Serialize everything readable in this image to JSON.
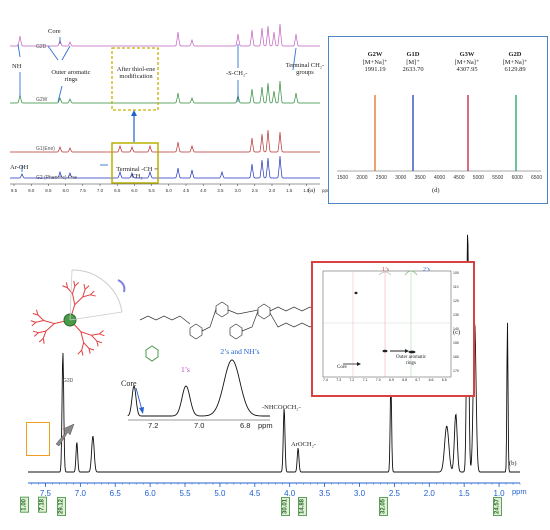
{
  "panel_a": {
    "label": "(a)",
    "annotations": {
      "core": "Core",
      "nh": "NH",
      "outer_aromatic": "Outer aromatic rings",
      "after_thiol": "After thiol-ene modification",
      "s_ch2": "-S-CH₂-",
      "terminal_groups": "Terminal CH₂-groups",
      "ar_oh": "Ar-OH",
      "terminal_ch": "Terminal -CH = CH₂"
    },
    "trace_labels": [
      "G2D",
      "G2W",
      "G1(Ene)",
      "G2 (Phenolic) Ene"
    ],
    "x_ticks": [
      "9.5",
      "9.0",
      "8.5",
      "8.0",
      "7.5",
      "7.0",
      "6.5",
      "6.0",
      "5.5",
      "5.0",
      "4.5",
      "4.0",
      "3.5",
      "3.0",
      "2.5",
      "2.0",
      "1.5",
      "1.0"
    ],
    "x_unit": "ppm",
    "colors": [
      "#c060c0",
      "#2e8b3a",
      "#b83030",
      "#2030c0"
    ]
  },
  "panel_d": {
    "label": "(d)",
    "species": [
      {
        "name": "G2W",
        "ion": "[M+Na]⁺",
        "mass": "1991.19",
        "color": "#e07020"
      },
      {
        "name": "G1D",
        "ion": "[M]⁺",
        "mass": "2633.70",
        "color": "#2040c0"
      },
      {
        "name": "G3W",
        "ion": "[M+Na]⁺",
        "mass": "4307.95",
        "color": "#c02040"
      },
      {
        "name": "G2D",
        "ion": "[M+Na]⁺",
        "mass": "6129.89",
        "color": "#20a060"
      }
    ],
    "x_ticks": [
      "1500",
      "2000",
      "2500",
      "3000",
      "3500",
      "4000",
      "4500",
      "5000",
      "5500",
      "6000",
      "6500"
    ]
  },
  "panel_b": {
    "label": "(b)",
    "x_ticks": [
      "7.5",
      "7.0",
      "6.5",
      "6.0",
      "5.5",
      "5.0",
      "4.5",
      "4.0",
      "3.5",
      "3.0",
      "2.5",
      "2.0",
      "1.5",
      "1.0"
    ],
    "x_unit": "ppm",
    "annotations": {
      "nhcoo": "-NHCOOCH₂-",
      "arocH": "ArOCH₂-",
      "core": "Core",
      "ones": "1’s",
      "twos": "2’s and NH’s"
    },
    "inset_ticks": [
      "7.2",
      "7.0",
      "6.8"
    ],
    "inset_unit": "ppm",
    "integrals": [
      "1.00",
      "7.18",
      "29.12",
      "30.01",
      "14.88",
      "32.05",
      "24.57"
    ],
    "molecule_label": "G3D"
  },
  "panel_c": {
    "label": "(c)",
    "ones": "1’s",
    "twos": "2’s",
    "core": "Core",
    "outer_aromatic": "Outer aromatic rings",
    "x_ticks": [
      "7.4",
      "7.3",
      "7.2",
      "7.1",
      "7.0",
      "6.9",
      "6.8",
      "6.7",
      "6.6",
      "6.5"
    ],
    "y_ticks": [
      "100",
      "110",
      "120",
      "130",
      "140",
      "150",
      "160",
      "170"
    ]
  },
  "chart_data": [
    {
      "type": "line",
      "title": "",
      "xlabel": "ppm",
      "xlim": [
        9.6,
        0.6
      ],
      "series": [
        {
          "name": "G2D",
          "values": []
        },
        {
          "name": "G2W",
          "values": []
        },
        {
          "name": "G1(Ene)",
          "values": []
        },
        {
          "name": "G2 (Phenolic) Ene",
          "values": []
        }
      ]
    },
    {
      "type": "bar",
      "title": "",
      "categories": [
        "G2W",
        "G1D",
        "G3W",
        "G2D"
      ],
      "values": [
        1991.19,
        2633.7,
        4307.95,
        6129.89
      ],
      "xlim": [
        1500,
        6500
      ]
    },
    {
      "type": "line",
      "title": "",
      "xlabel": "ppm",
      "xlim": [
        7.7,
        0.7
      ],
      "integrals": [
        1.0,
        7.18,
        29.12,
        30.01,
        14.88,
        32.05,
        24.57
      ],
      "peaks_ppm": [
        7.25,
        7.05,
        6.82,
        4.08,
        3.88,
        2.55,
        1.65,
        1.45,
        1.35,
        0.88
      ]
    }
  ]
}
